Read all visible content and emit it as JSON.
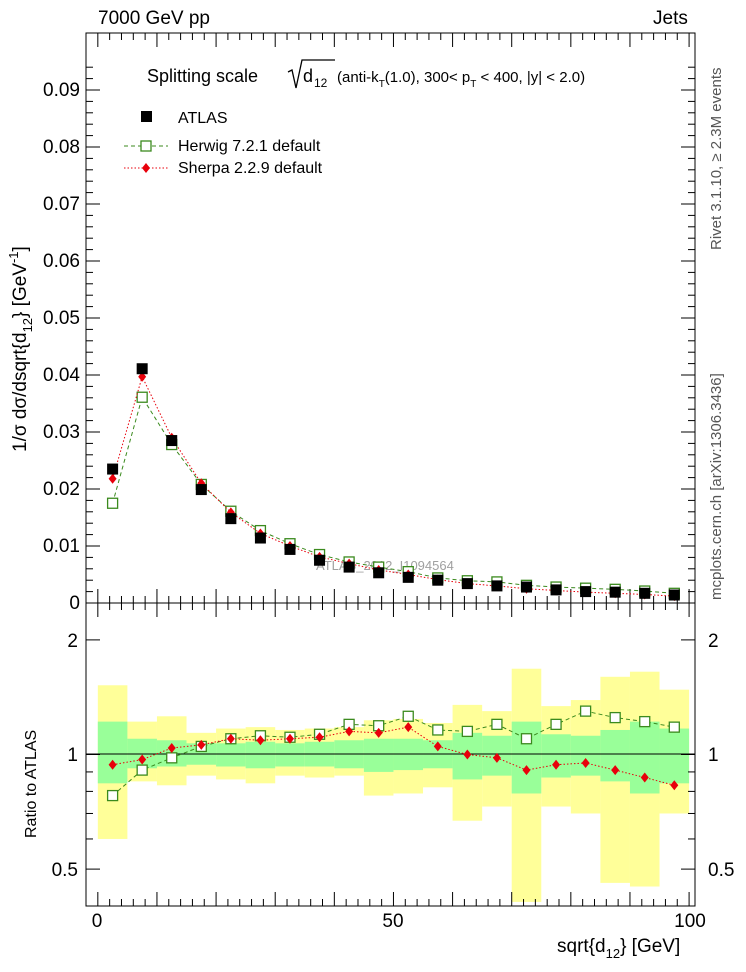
{
  "header": {
    "left": "7000 GeV pp",
    "right": "Jets"
  },
  "side_labels": {
    "rivet": "Rivet 3.1.10, ≥ 2.3M events",
    "mcplots": "mcplots.cern.ch [arXiv:1306.3436]"
  },
  "watermark": "ATLAS_2012_I1094564",
  "title": {
    "prefix": "Splitting scale",
    "sqrt_var": "d",
    "sqrt_sub": "12",
    "details_a": "(anti-k",
    "details_a_sub": "T",
    "details_b": "(1.0), 300< p",
    "details_b_sub": "T",
    "details_c": " < 400, |y| < 2.0)"
  },
  "legend": {
    "atlas": "ATLAS",
    "herwig": "Herwig 7.2.1 default",
    "sherpa": "Sherpa 2.2.9 default"
  },
  "axes": {
    "top_ylabel_a": "1/σ dσ/dsqrt{d",
    "top_ylabel_sub": "12",
    "top_ylabel_b": "} [GeV",
    "top_ylabel_sup": "-1",
    "top_ylabel_c": "]",
    "bottom_ylabel": "Ratio to ATLAS",
    "xlabel_a": "sqrt{d",
    "xlabel_sub": "12",
    "xlabel_b": "} [GeV]",
    "top_yticks": [
      "0",
      "0.01",
      "0.02",
      "0.03",
      "0.04",
      "0.05",
      "0.06",
      "0.07",
      "0.08",
      "0.09"
    ],
    "ratio_yticks": [
      "0.5",
      "1",
      "2"
    ],
    "xticks": [
      "0",
      "50",
      "100"
    ]
  },
  "colors": {
    "atlas": "#000000",
    "herwig": "#3b8a1e",
    "sherpa": "#e8000b",
    "band_inner": "#99ff99",
    "band_outer": "#ffff99"
  },
  "chart_data": {
    "type": "scatter",
    "x": [
      2.5,
      7.5,
      12.5,
      17.5,
      22.5,
      27.5,
      32.5,
      37.5,
      42.5,
      47.5,
      52.5,
      57.5,
      62.5,
      67.5,
      72.5,
      77.5,
      82.5,
      87.5,
      92.5,
      97.5
    ],
    "xlim": [
      -2,
      101
    ],
    "ylim": [
      0,
      0.1
    ],
    "ratio_ylim": [
      0.4,
      2.5
    ],
    "series": [
      {
        "name": "ATLAS",
        "values": [
          0.0235,
          0.0411,
          0.0285,
          0.0199,
          0.0148,
          0.0114,
          0.0094,
          0.0075,
          0.0063,
          0.0053,
          0.0045,
          0.004,
          0.0034,
          0.003,
          0.0028,
          0.0023,
          0.002,
          0.0019,
          0.0017,
          0.0014
        ]
      },
      {
        "name": "Herwig 7.2.1 default",
        "values": [
          0.0175,
          0.0361,
          0.0278,
          0.0208,
          0.0161,
          0.0127,
          0.0104,
          0.0085,
          0.0072,
          0.0063,
          0.0055,
          0.0044,
          0.0039,
          0.0037,
          0.0031,
          0.0028,
          0.0026,
          0.0024,
          0.0021,
          0.0017
        ],
        "ratio": [
          0.78,
          0.91,
          0.98,
          1.05,
          1.1,
          1.12,
          1.11,
          1.13,
          1.2,
          1.19,
          1.26,
          1.16,
          1.15,
          1.2,
          1.1,
          1.2,
          1.3,
          1.25,
          1.22,
          1.18
        ]
      },
      {
        "name": "Sherpa 2.2.9 default",
        "values": [
          0.0218,
          0.0397,
          0.029,
          0.021,
          0.0159,
          0.0122,
          0.01,
          0.0081,
          0.0069,
          0.0058,
          0.005,
          0.0041,
          0.0034,
          0.003,
          0.0025,
          0.0022,
          0.0019,
          0.0017,
          0.0015,
          0.0012
        ],
        "ratio": [
          0.94,
          0.97,
          1.04,
          1.06,
          1.1,
          1.09,
          1.1,
          1.11,
          1.15,
          1.14,
          1.18,
          1.05,
          1.0,
          0.98,
          0.91,
          0.94,
          0.95,
          0.91,
          0.87,
          0.83
        ]
      }
    ],
    "ratio_band_inner": [
      [
        0.84,
        1.22
      ],
      [
        0.92,
        1.1
      ],
      [
        0.93,
        1.09
      ],
      [
        0.94,
        1.07
      ],
      [
        0.93,
        1.07
      ],
      [
        0.92,
        1.08
      ],
      [
        0.93,
        1.07
      ],
      [
        0.93,
        1.08
      ],
      [
        0.92,
        1.09
      ],
      [
        0.9,
        1.1
      ],
      [
        0.91,
        1.1
      ],
      [
        0.92,
        1.09
      ],
      [
        0.86,
        1.14
      ],
      [
        0.88,
        1.12
      ],
      [
        0.79,
        1.22
      ],
      [
        0.87,
        1.13
      ],
      [
        0.88,
        1.12
      ],
      [
        0.85,
        1.16
      ],
      [
        0.79,
        1.22
      ],
      [
        0.84,
        1.17
      ]
    ],
    "ratio_band_outer": [
      [
        0.6,
        1.52
      ],
      [
        0.85,
        1.22
      ],
      [
        0.83,
        1.26
      ],
      [
        0.88,
        1.14
      ],
      [
        0.86,
        1.17
      ],
      [
        0.84,
        1.18
      ],
      [
        0.88,
        1.16
      ],
      [
        0.87,
        1.17
      ],
      [
        0.88,
        1.18
      ],
      [
        0.78,
        1.23
      ],
      [
        0.79,
        1.24
      ],
      [
        0.82,
        1.21
      ],
      [
        0.67,
        1.35
      ],
      [
        0.73,
        1.3
      ],
      [
        0.41,
        1.68
      ],
      [
        0.73,
        1.34
      ],
      [
        0.7,
        1.39
      ],
      [
        0.46,
        1.6
      ],
      [
        0.45,
        1.65
      ],
      [
        0.7,
        1.48
      ]
    ],
    "title": "Splitting scale sqrt(d12) (anti-kT(1.0), 300< pT < 400, |y| < 2.0)",
    "xlabel": "sqrt{d12} [GeV]",
    "ylabel": "1/σ dσ/dsqrt{d12} [GeV^-1]",
    "ratio_ylabel": "Ratio to ATLAS"
  }
}
